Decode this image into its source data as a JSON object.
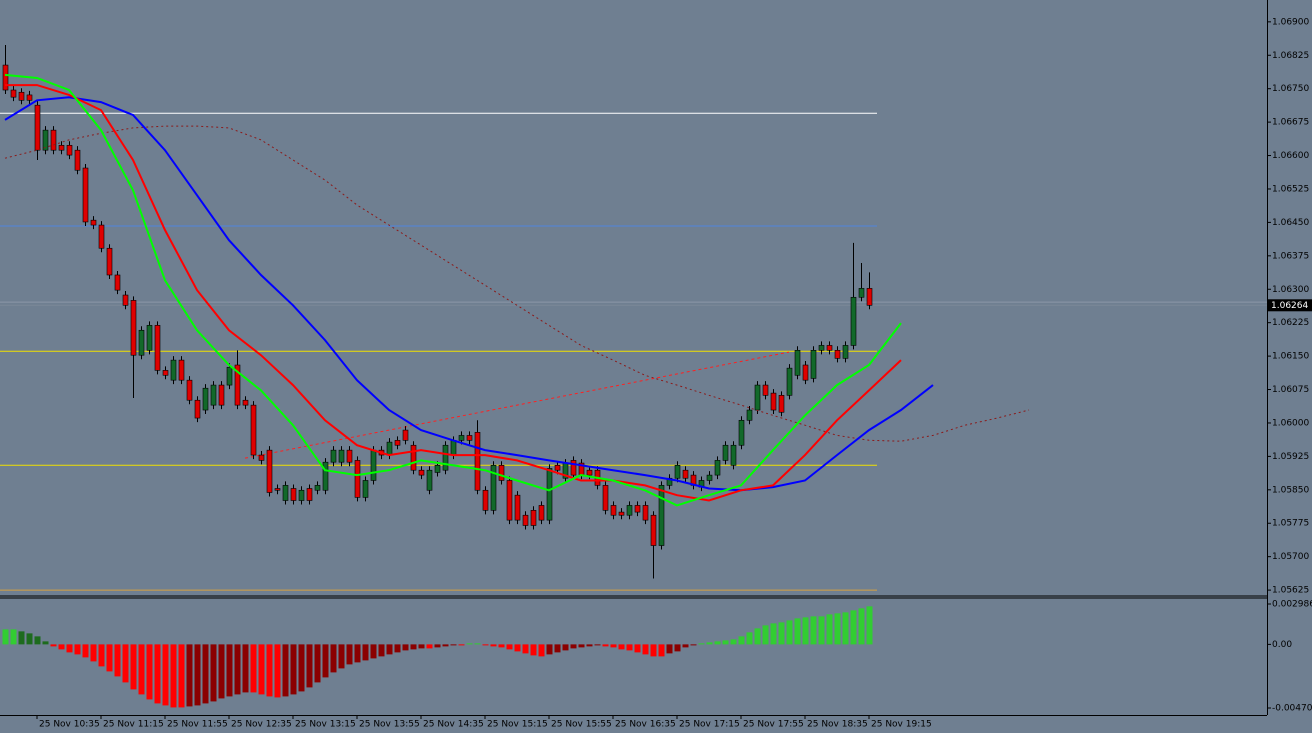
{
  "chart_data": [
    {
      "type": "candlestick",
      "categories": [
        null,
        null,
        null,
        null,
        "25 Nov 10:35",
        null,
        null,
        null,
        null,
        null,
        null,
        null,
        "25 Nov 11:15",
        null,
        null,
        null,
        null,
        null,
        null,
        null,
        "25 Nov 11:55",
        null,
        null,
        null,
        null,
        null,
        null,
        null,
        "25 Nov 12:35",
        null,
        null,
        null,
        null,
        null,
        null,
        null,
        "25 Nov 13:15",
        null,
        null,
        null,
        null,
        null,
        null,
        null,
        "25 Nov 13:55",
        null,
        null,
        null,
        null,
        null,
        null,
        null,
        "25 Nov 14:35",
        null,
        null,
        null,
        null,
        null,
        null,
        null,
        "25 Nov 15:15",
        null,
        null,
        null,
        null,
        null,
        null,
        null,
        "25 Nov 15:55",
        null,
        null,
        null,
        null,
        null,
        null,
        null,
        "25 Nov 16:35",
        null,
        null,
        null,
        null,
        null,
        null,
        null,
        "25 Nov 17:15",
        null,
        null,
        null,
        null,
        null,
        null,
        null,
        "25 Nov 17:55",
        null,
        null,
        null,
        null,
        null,
        null,
        null,
        "25 Nov 18:35",
        null,
        null,
        null,
        null,
        null,
        null,
        null,
        "25 Nov 19:15"
      ],
      "open": [
        1.06803,
        1.06747,
        1.06742,
        1.06736,
        1.06713,
        1.06612,
        1.06657,
        1.06623,
        1.06623,
        1.06612,
        1.06572,
        1.06455,
        1.06444,
        1.06392,
        1.06332,
        1.06287,
        1.06275,
        1.06152,
        1.06163,
        1.06219,
        1.06118,
        1.06096,
        1.06141,
        1.06096,
        1.06051,
        1.06029,
        1.0604,
        1.06085,
        1.06085,
        1.0613,
        1.06051,
        1.0604,
        1.05928,
        1.05939,
        1.05853,
        1.05826,
        1.05853,
        1.05826,
        1.05853,
        1.05849,
        1.05849,
        1.05912,
        1.05912,
        1.05939,
        1.05916,
        1.05833,
        1.05871,
        1.05939,
        1.05928,
        1.05961,
        1.05984,
        1.0595,
        1.05894,
        1.05849,
        1.05889,
        1.05894,
        1.05928,
        1.05961,
        1.05972,
        1.05979,
        1.05849,
        1.05804,
        1.05905,
        1.05871,
        1.05838,
        1.05793,
        1.05804,
        1.05815,
        1.05782,
        1.05905,
        1.05876,
        1.05916,
        1.0591,
        1.05894,
        1.05894,
        1.0586,
        1.05815,
        1.058,
        1.05793,
        1.05815,
        1.05815,
        1.05793,
        1.05725,
        1.0586,
        1.05876,
        1.05894,
        1.05883,
        1.05856,
        1.05871,
        1.05883,
        1.05916,
        1.05905,
        1.0595,
        1.06006,
        1.06029,
        1.06085,
        1.06067,
        1.06062,
        1.06062,
        1.06107,
        1.0613,
        1.061,
        1.06163,
        1.06174,
        1.06163,
        1.06145,
        1.06174,
        1.06282,
        1.06302
      ],
      "high": [
        1.06848,
        1.06756,
        1.06751,
        1.06745,
        1.06722,
        1.06666,
        1.06666,
        1.06632,
        1.06632,
        1.06621,
        1.06581,
        1.06464,
        1.06453,
        1.06401,
        1.06341,
        1.06296,
        1.06284,
        1.06217,
        1.06228,
        1.06228,
        1.06127,
        1.0615,
        1.0615,
        1.06105,
        1.0606,
        1.06087,
        1.06094,
        1.06094,
        1.06134,
        1.06163,
        1.0606,
        1.06049,
        1.05937,
        1.05948,
        1.05862,
        1.05869,
        1.05862,
        1.05858,
        1.05862,
        1.05869,
        1.05921,
        1.05948,
        1.05948,
        1.05948,
        1.05925,
        1.0588,
        1.05948,
        1.05948,
        1.05966,
        1.0597,
        1.05993,
        1.05959,
        1.05903,
        1.05903,
        1.05914,
        1.05959,
        1.0597,
        1.05981,
        1.05981,
        1.06006,
        1.05858,
        1.05914,
        1.05914,
        1.0588,
        1.05847,
        1.05802,
        1.05813,
        1.05824,
        1.05907,
        1.05914,
        1.05919,
        1.05925,
        1.05919,
        1.05903,
        1.05903,
        1.05869,
        1.05824,
        1.05809,
        1.05824,
        1.05824,
        1.05824,
        1.05802,
        1.05869,
        1.05885,
        1.05914,
        1.05903,
        1.05892,
        1.0588,
        1.05892,
        1.05925,
        1.05959,
        1.05959,
        1.06015,
        1.06038,
        1.06094,
        1.06094,
        1.06076,
        1.06071,
        1.06132,
        1.06172,
        1.06139,
        1.06172,
        1.06183,
        1.06183,
        1.06172,
        1.06183,
        1.06404,
        1.06359,
        1.06338
      ],
      "low": [
        1.06738,
        1.06722,
        1.06715,
        1.06715,
        1.0659,
        1.06603,
        1.06603,
        1.06603,
        1.06592,
        1.06558,
        1.06442,
        1.06435,
        1.06383,
        1.06323,
        1.06289,
        1.06255,
        1.06056,
        1.06143,
        1.06154,
        1.06109,
        1.06098,
        1.06087,
        1.06087,
        1.06042,
        1.06002,
        1.0602,
        1.06031,
        1.06031,
        1.06076,
        1.06031,
        1.06031,
        1.05919,
        1.05907,
        1.05835,
        1.0584,
        1.05817,
        1.05817,
        1.05817,
        1.05817,
        1.0584,
        1.0584,
        1.05903,
        1.05903,
        1.05903,
        1.05824,
        1.05824,
        1.05862,
        1.05919,
        1.05919,
        1.05941,
        1.05952,
        1.05885,
        1.05874,
        1.0584,
        1.0588,
        1.05885,
        1.05919,
        1.05952,
        1.05952,
        1.0584,
        1.05795,
        1.05795,
        1.05862,
        1.05773,
        1.05773,
        1.05761,
        1.05761,
        1.05773,
        1.05773,
        1.05885,
        1.05867,
        1.05874,
        1.05874,
        1.05874,
        1.05851,
        1.05795,
        1.05784,
        1.05784,
        1.05784,
        1.05791,
        1.05773,
        1.05651,
        1.05716,
        1.05851,
        1.05867,
        1.05867,
        1.05851,
        1.05847,
        1.05862,
        1.05874,
        1.05907,
        1.05896,
        1.05941,
        1.05997,
        1.0602,
        1.06053,
        1.0602,
        1.06015,
        1.06053,
        1.06098,
        1.06087,
        1.06091,
        1.06154,
        1.06154,
        1.06136,
        1.06136,
        1.06165,
        1.06273,
        1.06255
      ],
      "close": [
        1.06747,
        1.06731,
        1.06724,
        1.06724,
        1.06612,
        1.06657,
        1.06612,
        1.06612,
        1.06601,
        1.06567,
        1.06451,
        1.06444,
        1.06392,
        1.06332,
        1.06298,
        1.06264,
        1.06152,
        1.06208,
        1.06219,
        1.06118,
        1.06107,
        1.06141,
        1.06096,
        1.06051,
        1.06011,
        1.06078,
        1.06085,
        1.0604,
        1.06125,
        1.0604,
        1.0604,
        1.05928,
        1.05916,
        1.05844,
        1.05849,
        1.0586,
        1.05826,
        1.05849,
        1.05826,
        1.0586,
        1.05912,
        1.05939,
        1.05939,
        1.05912,
        1.05833,
        1.05871,
        1.05939,
        1.05928,
        1.05957,
        1.0595,
        1.05961,
        1.05894,
        1.05883,
        1.05894,
        1.05905,
        1.0595,
        1.05961,
        1.05972,
        1.05961,
        1.05849,
        1.05804,
        1.05905,
        1.05871,
        1.05782,
        1.05782,
        1.0577,
        1.0577,
        1.05782,
        1.05898,
        1.05894,
        1.0591,
        1.05883,
        1.05883,
        1.05883,
        1.0586,
        1.05804,
        1.05793,
        1.05793,
        1.05815,
        1.058,
        1.05782,
        1.05725,
        1.0586,
        1.05876,
        1.05905,
        1.05876,
        1.0586,
        1.05871,
        1.05883,
        1.05916,
        1.0595,
        1.0595,
        1.06006,
        1.06029,
        1.06085,
        1.06062,
        1.06029,
        1.06024,
        1.06123,
        1.06163,
        1.06096,
        1.06163,
        1.06174,
        1.06163,
        1.06145,
        1.06174,
        1.06282,
        1.06302,
        1.06264
      ],
      "up_color": "#12692a",
      "down_color": "#e00000",
      "wick_color": "#000000",
      "ylim": [
        1.05614,
        1.06949
      ],
      "yticks": [
        {
          "value": 1.069,
          "label": "1.06900"
        },
        1.06825,
        {
          "value": 1.0675,
          "label": "1.06750"
        },
        1.06675,
        {
          "value": 1.066,
          "label": "1.06600"
        },
        1.06525,
        {
          "value": 1.0645,
          "label": "1.06450"
        },
        1.06375,
        {
          "value": 1.063,
          "label": "1.06300"
        },
        1.06225,
        {
          "value": 1.0615,
          "label": "1.06150"
        },
        1.06075,
        {
          "value": 1.06,
          "label": "1.06000"
        },
        1.05925,
        {
          "value": 1.0585,
          "label": "1.05850"
        },
        1.05775,
        {
          "value": 1.057,
          "label": "1.05700"
        },
        1.05625
      ],
      "last_price": 1.06264,
      "ma_x": [
        "25 Nov 10:15",
        "25 Nov 10:35",
        "25 Nov 10:55",
        "25 Nov 11:15",
        "25 Nov 11:35",
        "25 Nov 11:55",
        "25 Nov 12:15",
        "25 Nov 12:35",
        "25 Nov 12:55",
        "25 Nov 13:15",
        "25 Nov 13:35",
        "25 Nov 13:55",
        "25 Nov 14:15",
        "25 Nov 14:35",
        "25 Nov 14:55",
        "25 Nov 15:15",
        "25 Nov 15:35",
        "25 Nov 15:55",
        "25 Nov 16:15",
        "25 Nov 16:35",
        "25 Nov 16:55",
        "25 Nov 17:15",
        "25 Nov 17:35",
        "25 Nov 17:55",
        "25 Nov 18:15",
        "25 Nov 18:35",
        "25 Nov 18:55",
        "25 Nov 19:15",
        "25 Nov 19:35",
        "25 Nov 19:55",
        "25 Nov 20:15",
        "25 Nov 20:35",
        "25 Nov 20:55"
      ],
      "lines": [
        {
          "color": "#8b1a1a",
          "dashed": true,
          "values": [
            1.06594,
            1.06612,
            1.06635,
            1.0665,
            1.06662,
            1.06666,
            1.06666,
            1.06662,
            1.06635,
            1.0659,
            1.06545,
            1.06489,
            1.06444,
            1.06399,
            1.06354,
            1.06309,
            1.06264,
            1.06219,
            1.06174,
            1.06141,
            1.06107,
            1.06085,
            1.06062,
            1.0604,
            1.06017,
            1.05995,
            1.05972,
            1.05961,
            1.05959,
            1.05972,
            1.05995,
            1.06011,
            1.06029
          ]
        },
        {
          "color": "#0000ff",
          "dashed": false,
          "values": [
            1.0668,
            1.06724,
            1.06731,
            1.0672,
            1.06691,
            1.06612,
            1.06511,
            1.0641,
            1.06332,
            1.06264,
            1.06186,
            1.06096,
            1.06029,
            1.05984,
            1.05961,
            1.05939,
            1.05928,
            1.05916,
            1.05905,
            1.05894,
            1.05883,
            1.05871,
            1.05853,
            1.05849,
            1.05856,
            1.05871,
            1.05928,
            1.05984,
            1.06029,
            1.06085,
            null,
            null,
            null
          ]
        },
        {
          "color": "#ff0000",
          "dashed": false,
          "values": [
            1.06758,
            1.06758,
            1.06736,
            1.06702,
            1.0659,
            1.06433,
            1.06298,
            1.06208,
            1.06152,
            1.06085,
            1.06006,
            1.0595,
            1.05928,
            1.05939,
            1.05928,
            1.05928,
            1.05916,
            1.05894,
            1.05871,
            1.05871,
            1.0586,
            1.05838,
            1.05826,
            1.05849,
            1.0586,
            1.05928,
            1.06006,
            1.06073,
            1.06141,
            null,
            null,
            null,
            null
          ]
        },
        {
          "color": "#00ff00",
          "dashed": false,
          "values": [
            1.06781,
            1.06774,
            1.06747,
            1.06657,
            1.06522,
            1.0632,
            1.06208,
            1.0613,
            1.06073,
            1.05995,
            1.05894,
            1.05883,
            1.05894,
            1.05916,
            1.05905,
            1.05894,
            1.05871,
            1.05849,
            1.05883,
            1.05871,
            1.05849,
            1.05815,
            1.05838,
            1.0586,
            1.05939,
            1.06017,
            1.06085,
            1.0613,
            1.06224,
            null,
            null,
            null,
            null
          ]
        }
      ],
      "trendline": {
        "color": "#ff2020",
        "x": [
          "25 Nov 12:45",
          "25 Nov 18:25"
        ],
        "values": [
          1.05921,
          1.06159
        ]
      },
      "levels": [
        {
          "value": 1.06695,
          "color": "#ffffff"
        },
        {
          "value": 1.06442,
          "color": "#4f86e0"
        },
        {
          "value": 1.06161,
          "color": "#f0e000"
        },
        {
          "value": 1.05905,
          "color": "#f0e000"
        },
        {
          "value": 1.05625,
          "color": "#d8a040"
        }
      ],
      "ask_line": {
        "value": 1.06271,
        "color": "#8c98a8"
      }
    },
    {
      "type": "bar",
      "values": [
        0.00111,
        0.00111,
        0.000962,
        0.000814,
        0.000592,
        0.000222,
        -0.000148,
        -0.00037,
        -0.000592,
        -0.00074,
        -0.000962,
        -0.001258,
        -0.001628,
        -0.001998,
        -0.002368,
        -0.002812,
        -0.00333,
        -0.0037,
        -0.00407,
        -0.004366,
        -0.004514,
        -0.004662,
        -0.004662,
        -0.004588,
        -0.004514,
        -0.004366,
        -0.004218,
        -0.003996,
        -0.003848,
        -0.0037,
        -0.003552,
        -0.003552,
        -0.0037,
        -0.003848,
        -0.003922,
        -0.003848,
        -0.0037,
        -0.003478,
        -0.003182,
        -0.002812,
        -0.002442,
        -0.002072,
        -0.001776,
        -0.00148,
        -0.001332,
        -0.001184,
        -0.001036,
        -0.000888,
        -0.00074,
        -0.000592,
        -0.000444,
        -0.00037,
        -0.000296,
        -0.000296,
        -0.000222,
        -0.000148,
        -7.4e-05,
        -7.4e-05,
        7.4e-05,
        7.4e-05,
        -7.4e-05,
        -0.000148,
        -0.000222,
        -0.00037,
        -0.000518,
        -0.000666,
        -0.000814,
        -0.000888,
        -0.00074,
        -0.000592,
        -0.000444,
        -0.000296,
        -0.000222,
        -0.000148,
        -7.4e-05,
        -0.000148,
        -0.000222,
        -0.00037,
        -0.000444,
        -0.000592,
        -0.00074,
        -0.000888,
        -0.000888,
        -0.000666,
        -0.000518,
        -0.000222,
        -7.4e-05,
        7.4e-05,
        0.000148,
        0.000222,
        0.000296,
        0.00037,
        0.000592,
        0.000888,
        0.001184,
        0.001406,
        0.001554,
        0.001628,
        0.001776,
        0.001924,
        0.001998,
        0.002072,
        0.002072,
        0.00222,
        0.002294,
        0.002368,
        0.002516,
        0.002664,
        0.002812
      ],
      "colors": {
        "up_rising": "#32cd32",
        "up_falling": "#1d6b1d",
        "down_falling": "#ff0000",
        "down_rising": "#8b0000"
      },
      "ylim": [
        -0.004705,
        0.002986
      ],
      "yticks": [
        0.002986,
        {
          "value": 0,
          "label": "0.00"
        },
        -0.004705
      ]
    }
  ]
}
